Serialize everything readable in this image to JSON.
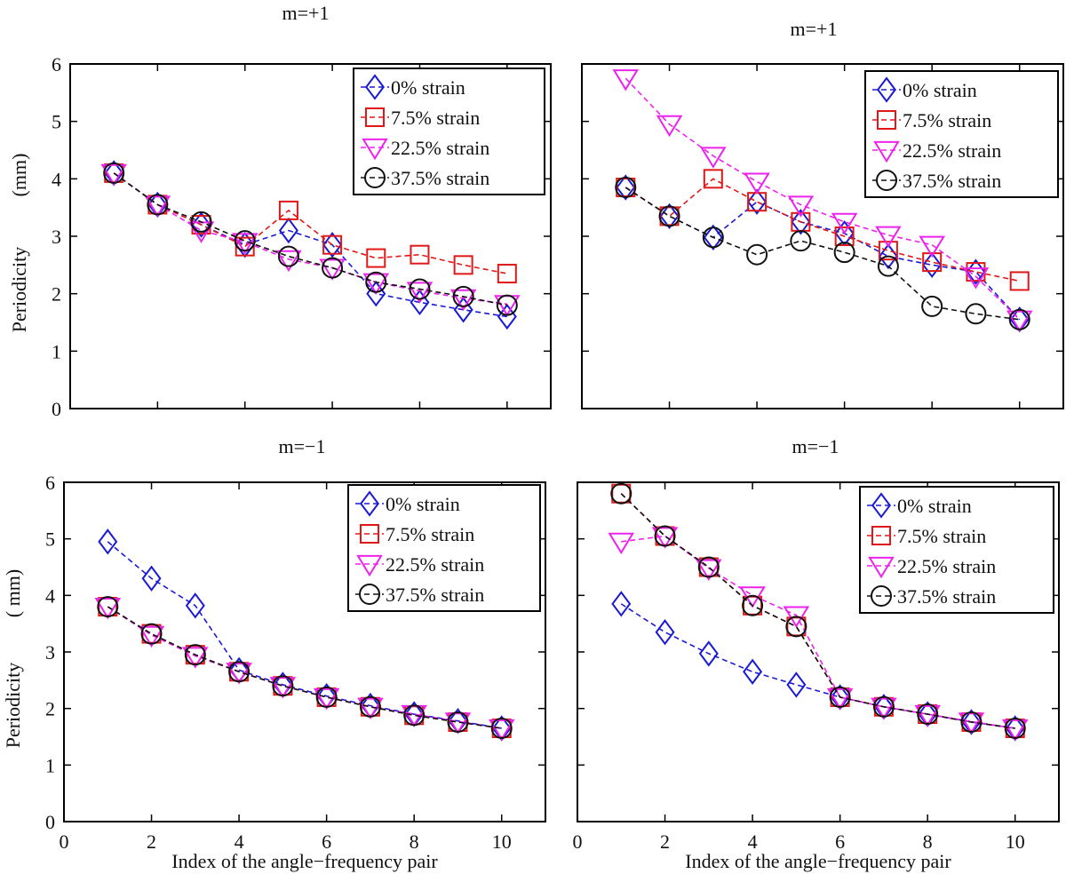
{
  "figure": {
    "xlabel": "Index of the angle−frequency pair",
    "ylabel": "Periodicity",
    "yunit": "(mm)"
  },
  "chart_data": [
    {
      "type": "line",
      "title": "m=+1",
      "xlabel": "",
      "ylabel": "Periodicity",
      "yunit": "(mm)",
      "xlim": [
        0,
        11
      ],
      "ylim": [
        0,
        6
      ],
      "xticks": [],
      "yticks": [
        "0",
        "1",
        "2",
        "3",
        "4",
        "5",
        "6"
      ],
      "x": [
        1,
        2,
        3,
        4,
        5,
        6,
        7,
        8,
        9,
        10
      ],
      "series": [
        {
          "name": "0% strain",
          "color": "#1a1ad6",
          "marker": "diamond",
          "values": [
            4.1,
            3.55,
            3.2,
            2.85,
            3.1,
            2.85,
            2.0,
            1.85,
            1.72,
            1.6
          ]
        },
        {
          "name": "7.5% strain",
          "color": "#e01818",
          "marker": "square",
          "values": [
            4.1,
            3.55,
            3.2,
            2.82,
            3.45,
            2.85,
            2.62,
            2.68,
            2.5,
            2.35
          ]
        },
        {
          "name": "22.5% strain",
          "color": "#ee22ee",
          "marker": "triangle-down",
          "values": [
            4.1,
            3.55,
            3.1,
            2.9,
            2.6,
            2.45,
            2.2,
            2.05,
            1.92,
            1.82
          ]
        },
        {
          "name": "37.5% strain",
          "color": "#111111",
          "marker": "circle",
          "values": [
            4.1,
            3.55,
            3.25,
            2.92,
            2.65,
            2.45,
            2.2,
            2.08,
            1.95,
            1.8
          ]
        }
      ]
    },
    {
      "type": "line",
      "title": "m=+1",
      "xlabel": "",
      "ylabel": "",
      "yunit": "",
      "xlim": [
        0,
        11
      ],
      "ylim": [
        0,
        6
      ],
      "xticks": [],
      "yticks": [],
      "x": [
        1,
        2,
        3,
        4,
        5,
        6,
        7,
        8,
        9,
        10
      ],
      "series": [
        {
          "name": "0% strain",
          "color": "#1a1ad6",
          "marker": "diamond",
          "values": [
            3.85,
            3.35,
            2.98,
            3.6,
            3.25,
            3.05,
            2.65,
            2.5,
            2.38,
            1.55
          ]
        },
        {
          "name": "7.5% strain",
          "color": "#e01818",
          "marker": "square",
          "values": [
            3.85,
            3.35,
            4.0,
            3.6,
            3.25,
            3.0,
            2.75,
            2.55,
            2.38,
            2.22
          ]
        },
        {
          "name": "22.5% strain",
          "color": "#ee22ee",
          "marker": "triangle-down",
          "values": [
            5.75,
            4.95,
            4.4,
            3.95,
            3.55,
            3.25,
            3.02,
            2.85,
            2.3,
            1.55
          ]
        },
        {
          "name": "37.5% strain",
          "color": "#111111",
          "marker": "circle",
          "values": [
            3.85,
            3.35,
            2.98,
            2.68,
            2.92,
            2.72,
            2.48,
            1.78,
            1.65,
            1.55
          ]
        }
      ]
    },
    {
      "type": "line",
      "title": "m=−1",
      "xlabel": "Index of the angle−frequency pair",
      "ylabel": "Periodicity",
      "yunit": "( mm)",
      "xlim": [
        0,
        11
      ],
      "ylim": [
        0,
        6
      ],
      "xticks": [
        "0",
        "2",
        "4",
        "6",
        "8",
        "10"
      ],
      "yticks": [
        "0",
        "1",
        "2",
        "3",
        "4",
        "5",
        "6"
      ],
      "x": [
        1,
        2,
        3,
        4,
        5,
        6,
        7,
        8,
        9,
        10
      ],
      "series": [
        {
          "name": "0% strain",
          "color": "#1a1ad6",
          "marker": "diamond",
          "values": [
            4.95,
            4.3,
            3.82,
            2.68,
            2.42,
            2.22,
            2.05,
            1.9,
            1.78,
            1.65
          ]
        },
        {
          "name": "7.5% strain",
          "color": "#e01818",
          "marker": "square",
          "values": [
            3.8,
            3.32,
            2.95,
            2.65,
            2.4,
            2.2,
            2.03,
            1.88,
            1.76,
            1.65
          ]
        },
        {
          "name": "22.5% strain",
          "color": "#ee22ee",
          "marker": "triangle-down",
          "values": [
            3.8,
            3.3,
            2.93,
            2.65,
            2.4,
            2.2,
            2.03,
            1.9,
            1.77,
            1.65
          ]
        },
        {
          "name": "37.5% strain",
          "color": "#111111",
          "marker": "circle",
          "values": [
            3.8,
            3.32,
            2.95,
            2.65,
            2.4,
            2.2,
            2.03,
            1.88,
            1.76,
            1.65
          ]
        }
      ]
    },
    {
      "type": "line",
      "title": "m=−1",
      "xlabel": "Index of the angle−frequency pair",
      "ylabel": "",
      "yunit": "",
      "xlim": [
        0,
        11
      ],
      "ylim": [
        0,
        6
      ],
      "xticks": [
        "0",
        "2",
        "4",
        "6",
        "8",
        "10"
      ],
      "yticks": [],
      "x": [
        1,
        2,
        3,
        4,
        5,
        6,
        7,
        8,
        9,
        10
      ],
      "series": [
        {
          "name": "0% strain",
          "color": "#1a1ad6",
          "marker": "diamond",
          "values": [
            3.85,
            3.35,
            2.97,
            2.65,
            2.42,
            2.2,
            2.03,
            1.9,
            1.76,
            1.65
          ]
        },
        {
          "name": "7.5% strain",
          "color": "#e01818",
          "marker": "square",
          "values": [
            5.8,
            5.05,
            4.5,
            3.82,
            3.45,
            2.2,
            2.03,
            1.9,
            1.76,
            1.65
          ]
        },
        {
          "name": "22.5% strain",
          "color": "#ee22ee",
          "marker": "triangle-down",
          "values": [
            4.95,
            5.05,
            4.48,
            4.0,
            3.65,
            2.2,
            2.03,
            1.9,
            1.77,
            1.65
          ]
        },
        {
          "name": "37.5% strain",
          "color": "#111111",
          "marker": "circle",
          "values": [
            5.8,
            5.05,
            4.5,
            3.82,
            3.45,
            2.2,
            2.03,
            1.9,
            1.76,
            1.65
          ]
        }
      ]
    }
  ]
}
